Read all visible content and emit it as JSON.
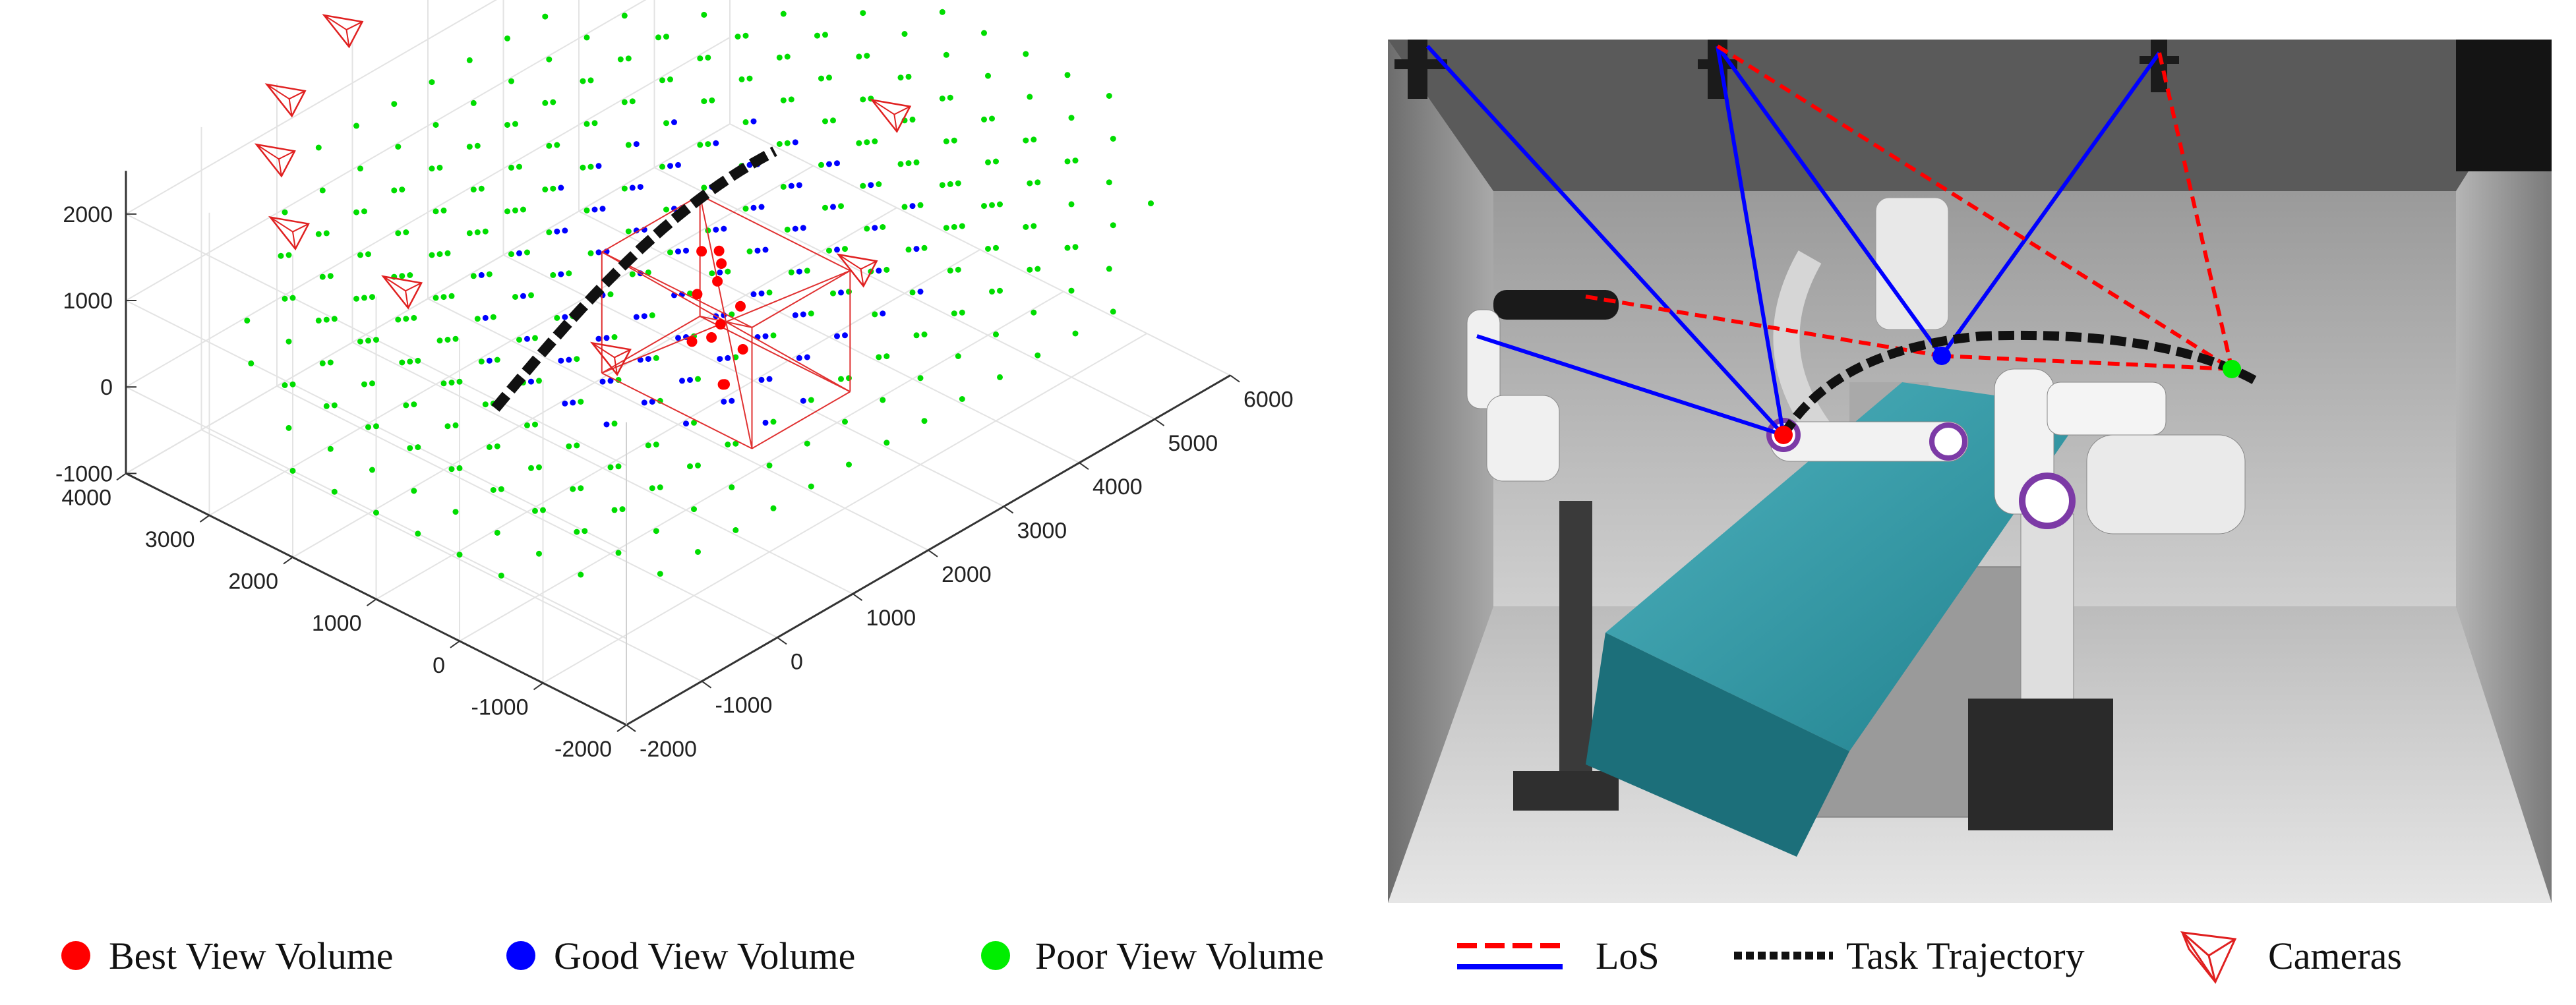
{
  "chart_data": {
    "type": "scatter",
    "title": "",
    "xlabel": "",
    "ylabel": "",
    "zlabel": "",
    "x_ticks": [
      "-2000",
      "-1000",
      "0",
      "1000",
      "2000",
      "3000",
      "4000",
      "5000",
      "6000"
    ],
    "y_ticks": [
      "-2000",
      "-1000",
      "0",
      "1000",
      "2000",
      "3000",
      "4000"
    ],
    "z_ticks": [
      "-1000",
      "0",
      "1000",
      "2000"
    ],
    "xlim": [
      -2000,
      6000
    ],
    "ylim": [
      -2000,
      4000
    ],
    "zlim": [
      -1000,
      2500
    ],
    "grid": true,
    "series": [
      {
        "name": "Best View Volume",
        "color": "#ff0000",
        "marker": "dot"
      },
      {
        "name": "Good View Volume",
        "color": "#0000ff",
        "marker": "dot"
      },
      {
        "name": "Poor View Volume",
        "color": "#00ee00",
        "marker": "dot"
      },
      {
        "name": "LoS",
        "colors": [
          "#ff0000",
          "#0000ff"
        ],
        "marker": "line"
      },
      {
        "name": "Task Trajectory",
        "color": "#000000",
        "marker": "dashed-curve"
      },
      {
        "name": "Cameras",
        "color": "#ff0000",
        "marker": "frustum"
      }
    ],
    "best_points": [
      [
        1200,
        -500,
        1000
      ],
      [
        1500,
        -200,
        1200
      ],
      [
        1800,
        300,
        1300
      ],
      [
        2100,
        600,
        1150
      ],
      [
        1300,
        200,
        700
      ],
      [
        1700,
        500,
        900
      ],
      [
        2200,
        900,
        950
      ],
      [
        1400,
        -100,
        300
      ],
      [
        1900,
        400,
        500
      ],
      [
        2300,
        800,
        600
      ],
      [
        1600,
        100,
        100
      ],
      [
        2000,
        600,
        200
      ]
    ],
    "cameras": [
      [
        -1500,
        2500,
        2300
      ],
      [
        -800,
        3300,
        2400
      ],
      [
        0,
        3900,
        2400
      ],
      [
        1200,
        4300,
        2400
      ],
      [
        2600,
        4400,
        2400
      ],
      [
        4300,
        4200,
        2400
      ],
      [
        5200,
        3300,
        2400
      ],
      [
        5100,
        2600,
        2300
      ],
      [
        -1000,
        1600,
        1800
      ],
      [
        0,
        0,
        1300
      ],
      [
        2600,
        -600,
        1300
      ],
      [
        4700,
        900,
        1300
      ]
    ],
    "trajectory_y": 1200,
    "trajectory_z_start": 200,
    "trajectory_z_end": 1500,
    "trajectory_x_range": [
      -200,
      3500
    ]
  },
  "legend": {
    "items": [
      {
        "label": "Best View Volume",
        "icon": "red-dot"
      },
      {
        "label": "Good View Volume",
        "icon": "blue-dot"
      },
      {
        "label": "Poor View Volume",
        "icon": "green-dot"
      },
      {
        "label": "LoS",
        "icon": "red-blue-lines"
      },
      {
        "label": "Task Trajectory",
        "icon": "black-dotted-line"
      },
      {
        "label": "Cameras",
        "icon": "camera-frustum"
      }
    ]
  },
  "scene": {
    "image": "operating-room-render",
    "camera_icons": [
      "ceiling-camera-icon",
      "ceiling-camera-icon",
      "ceiling-camera-icon",
      "ceiling-camera-icon"
    ],
    "markers": [
      {
        "name": "best-view-marker",
        "color": "#ff0000"
      },
      {
        "name": "good-view-marker",
        "color": "#0000ff"
      },
      {
        "name": "poor-view-marker",
        "color": "#00ee00"
      }
    ]
  }
}
